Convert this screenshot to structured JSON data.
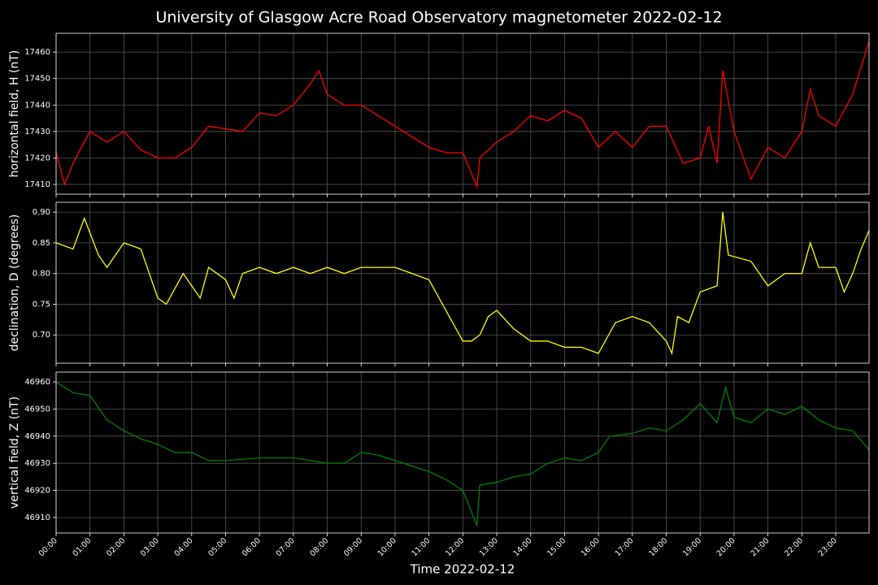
{
  "title": "University of Glasgow Acre Road Observatory magnetometer 2022-02-12",
  "chart_data": [
    {
      "type": "line",
      "ylabel": "horizontal field, H (nT)",
      "color": "#ff0000",
      "grid": true,
      "x": [
        "00:00",
        "00:15",
        "00:30",
        "01:00",
        "01:30",
        "02:00",
        "02:30",
        "03:00",
        "03:30",
        "04:00",
        "04:30",
        "05:00",
        "05:30",
        "06:00",
        "06:30",
        "07:00",
        "07:30",
        "07:45",
        "08:00",
        "08:30",
        "09:00",
        "09:30",
        "10:00",
        "10:30",
        "11:00",
        "11:30",
        "12:00",
        "12:25",
        "12:30",
        "13:00",
        "13:30",
        "14:00",
        "14:30",
        "15:00",
        "15:30",
        "16:00",
        "16:30",
        "17:00",
        "17:30",
        "18:00",
        "18:30",
        "19:00",
        "19:15",
        "19:30",
        "19:40",
        "20:00",
        "20:30",
        "21:00",
        "21:30",
        "22:00",
        "22:15",
        "22:30",
        "23:00",
        "23:30",
        "23:59"
      ],
      "values": [
        17422,
        17410,
        17418,
        17430,
        17426,
        17430,
        17423,
        17420,
        17420,
        17424,
        17432,
        17431,
        17430,
        17437,
        17436,
        17440,
        17448,
        17453,
        17444,
        17440,
        17440,
        17436,
        17432,
        17428,
        17424,
        17422,
        17422,
        17409,
        17420,
        17426,
        17430,
        17436,
        17434,
        17438,
        17435,
        17424,
        17430,
        17424,
        17432,
        17432,
        17418,
        17420,
        17432,
        17418,
        17453,
        17430,
        17412,
        17424,
        17420,
        17430,
        17446,
        17436,
        17432,
        17444,
        17464
      ],
      "xlim": [
        "00:00",
        "23:59"
      ],
      "ylim": [
        17406.3,
        17467.1
      ],
      "xticks": [
        "00:00",
        "01:00",
        "02:00",
        "03:00",
        "04:00",
        "05:00",
        "06:00",
        "07:00",
        "08:00",
        "09:00",
        "10:00",
        "11:00",
        "12:00",
        "13:00",
        "14:00",
        "15:00",
        "16:00",
        "17:00",
        "18:00",
        "19:00",
        "20:00",
        "21:00",
        "22:00",
        "23:00"
      ],
      "yticks": [
        17410,
        17420,
        17430,
        17440,
        17450,
        17460
      ]
    },
    {
      "type": "line",
      "ylabel": "declination, D (degrees)",
      "color": "#ffff00",
      "grid": true,
      "x": [
        "00:00",
        "00:30",
        "00:50",
        "01:15",
        "01:30",
        "02:00",
        "02:30",
        "02:45",
        "03:00",
        "03:15",
        "03:45",
        "04:15",
        "04:30",
        "05:00",
        "05:15",
        "05:30",
        "06:00",
        "06:30",
        "07:00",
        "07:30",
        "08:00",
        "08:30",
        "09:00",
        "09:30",
        "10:00",
        "10:30",
        "11:00",
        "11:30",
        "12:00",
        "12:15",
        "12:30",
        "12:45",
        "13:00",
        "13:30",
        "14:00",
        "14:30",
        "15:00",
        "15:30",
        "16:00",
        "16:30",
        "17:00",
        "17:30",
        "18:00",
        "18:10",
        "18:20",
        "18:40",
        "19:00",
        "19:30",
        "19:40",
        "19:50",
        "20:30",
        "21:00",
        "21:30",
        "22:00",
        "22:15",
        "22:30",
        "23:00",
        "23:15",
        "23:30",
        "23:45",
        "23:59"
      ],
      "values": [
        0.85,
        0.84,
        0.89,
        0.83,
        0.81,
        0.85,
        0.84,
        0.8,
        0.76,
        0.75,
        0.8,
        0.76,
        0.81,
        0.79,
        0.76,
        0.8,
        0.81,
        0.8,
        0.81,
        0.8,
        0.81,
        0.8,
        0.81,
        0.81,
        0.81,
        0.8,
        0.79,
        0.74,
        0.69,
        0.69,
        0.7,
        0.73,
        0.74,
        0.71,
        0.69,
        0.69,
        0.68,
        0.68,
        0.67,
        0.72,
        0.73,
        0.72,
        0.69,
        0.67,
        0.73,
        0.72,
        0.77,
        0.78,
        0.9,
        0.83,
        0.82,
        0.78,
        0.8,
        0.8,
        0.85,
        0.81,
        0.81,
        0.77,
        0.8,
        0.84,
        0.87
      ],
      "xlim": [
        "00:00",
        "23:59"
      ],
      "ylim": [
        0.654,
        0.916
      ],
      "xticks": [
        "00:00",
        "01:00",
        "02:00",
        "03:00",
        "04:00",
        "05:00",
        "06:00",
        "07:00",
        "08:00",
        "09:00",
        "10:00",
        "11:00",
        "12:00",
        "13:00",
        "14:00",
        "15:00",
        "16:00",
        "17:00",
        "18:00",
        "19:00",
        "20:00",
        "21:00",
        "22:00",
        "23:00"
      ],
      "yticks": [
        {
          "value": 0.7,
          "label": "0.70"
        },
        {
          "value": 0.75,
          "label": "0.75"
        },
        {
          "value": 0.8,
          "label": "0.80"
        },
        {
          "value": 0.85,
          "label": "0.85"
        },
        {
          "value": 0.9,
          "label": "0.90"
        }
      ]
    },
    {
      "type": "line",
      "ylabel": "vertical field, Z (nT)",
      "xlabel": "Time 2022-02-12",
      "color": "#008000",
      "grid": true,
      "x": [
        "00:00",
        "00:30",
        "01:00",
        "01:30",
        "02:00",
        "02:30",
        "03:00",
        "03:30",
        "04:00",
        "04:30",
        "05:00",
        "06:00",
        "07:00",
        "07:30",
        "08:00",
        "08:30",
        "09:00",
        "09:30",
        "10:00",
        "10:30",
        "11:00",
        "11:30",
        "12:00",
        "12:25",
        "12:30",
        "13:00",
        "13:30",
        "14:00",
        "14:30",
        "15:00",
        "15:30",
        "16:00",
        "16:20",
        "17:00",
        "17:30",
        "18:00",
        "18:30",
        "19:00",
        "19:30",
        "19:45",
        "20:00",
        "20:30",
        "21:00",
        "21:30",
        "22:00",
        "22:30",
        "23:00",
        "23:30",
        "23:59"
      ],
      "values": [
        46960,
        46956,
        46955,
        46946,
        46942,
        46939,
        46937,
        46934,
        46934,
        46931,
        46931,
        46932,
        46932,
        46931,
        46930,
        46930,
        46934,
        46933,
        46931,
        46929,
        46927,
        46924,
        46920,
        46907,
        46922,
        46923,
        46925,
        46926,
        46930,
        46932,
        46931,
        46934,
        46940,
        46941,
        46943,
        46942,
        46946,
        46952,
        46945,
        46958,
        46947,
        46945,
        46950,
        46948,
        46951,
        46946,
        46943,
        46942,
        46935
      ],
      "xlim": [
        "00:00",
        "23:59"
      ],
      "ylim": [
        46904.3,
        46963.6
      ],
      "xticks": [
        "00:00",
        "01:00",
        "02:00",
        "03:00",
        "04:00",
        "05:00",
        "06:00",
        "07:00",
        "08:00",
        "09:00",
        "10:00",
        "11:00",
        "12:00",
        "13:00",
        "14:00",
        "15:00",
        "16:00",
        "17:00",
        "18:00",
        "19:00",
        "20:00",
        "21:00",
        "22:00",
        "23:00"
      ],
      "yticks": [
        46910,
        46920,
        46930,
        46940,
        46950,
        46960
      ]
    }
  ]
}
